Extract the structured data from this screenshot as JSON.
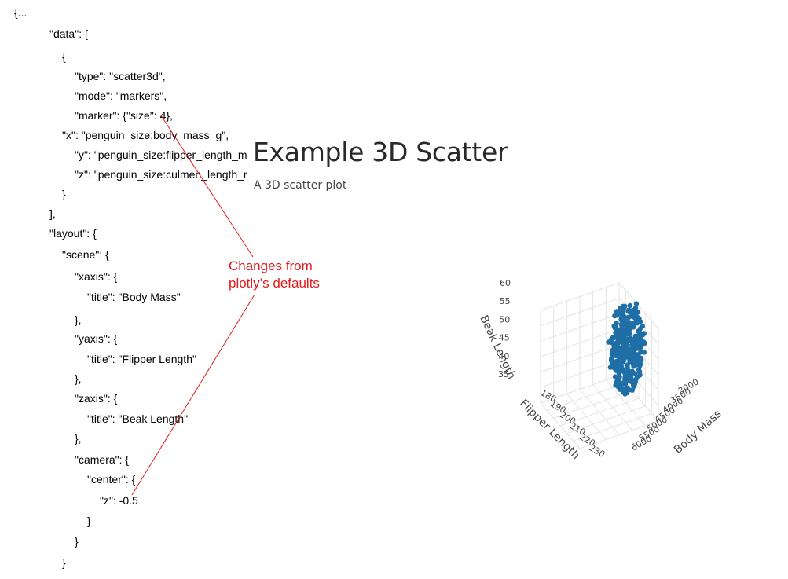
{
  "code_lines": [
    "{...",
    "\"data\": [",
    "{",
    "\"type\": \"scatter3d\",",
    "\"mode\": \"markers\",",
    "\"marker\": {\"size\": 4},",
    "\"x\": \"penguin_size:body_mass_g\",",
    "\"y\": \"penguin_size:flipper_length_m",
    "\"z\": \"penguin_size:culmen_length_r",
    "}",
    "],",
    "\"layout\": {",
    "\"scene\": {",
    "\"xaxis\": {",
    "\"title\": \"Body Mass\"",
    "},",
    "\"yaxis\": {",
    "\"title\": \"Flipper Length\"",
    "},",
    "\"zaxis\": {",
    "\"title\": \"Beak Length\"",
    "},",
    "\"camera\": {",
    "\"center\": {",
    "\"z\": -0.5",
    "}",
    "}",
    "}"
  ],
  "chart": {
    "title": "Example 3D Scatter",
    "subtitle": "A 3D scatter plot"
  },
  "annotation": {
    "line1": "Changes from",
    "line2": "plotly’s defaults",
    "color": "#e31a1c"
  },
  "chart_data": {
    "type": "scatter",
    "mode": "markers",
    "marker_size": 4,
    "marker_color": "#1f6fa6",
    "xlabel": "Body Mass",
    "ylabel": "Flipper Length",
    "zlabel": "Beak Length",
    "x_ticks": [
      "3000",
      "3500",
      "4000",
      "4500",
      "5000",
      "5500",
      "6000"
    ],
    "y_ticks": [
      "180",
      "190",
      "200",
      "210",
      "220",
      "230"
    ],
    "z_ticks": [
      "35",
      "40",
      "45",
      "50",
      "55",
      "60"
    ],
    "grid": true
  }
}
